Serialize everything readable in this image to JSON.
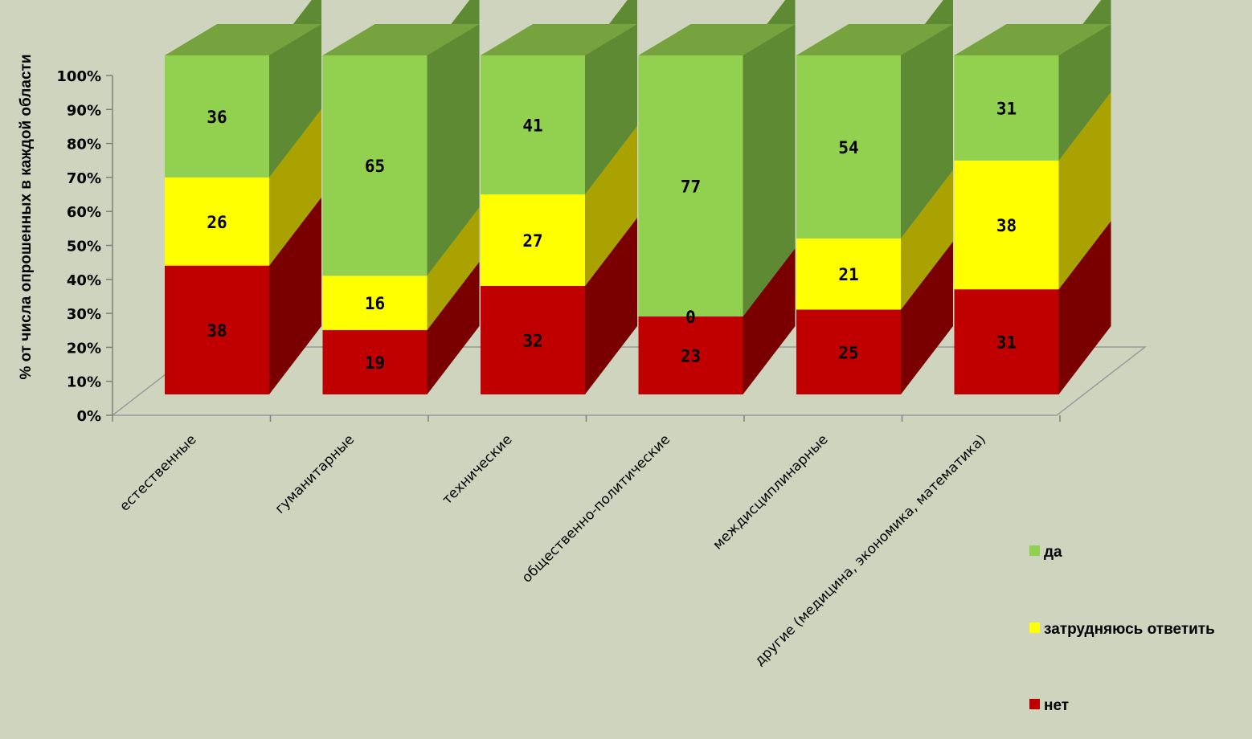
{
  "chart_data": {
    "type": "bar",
    "stacked": "percent",
    "three_d": true,
    "ylabel": "% от числа опрошенных в каждой области",
    "y_tick_labels": [
      "0%",
      "10%",
      "20%",
      "30%",
      "40%",
      "50%",
      "60%",
      "70%",
      "80%",
      "90%",
      "100%"
    ],
    "ylim": [
      0,
      100
    ],
    "categories": [
      "естественные",
      "гуманитарные",
      "технические",
      "общественно-политические",
      "междисциплинарные",
      "другие (медицина, экономика, математика)"
    ],
    "series": [
      {
        "name": "нет",
        "color": "#c00000",
        "side_color": "#7a0000",
        "top_color": "#8a0000",
        "values": [
          38,
          19,
          32,
          23,
          25,
          31
        ]
      },
      {
        "name": "затрудняюсь ответить",
        "color": "#ffff00",
        "side_color": "#a9a200",
        "top_color": "#c8c400",
        "values": [
          26,
          16,
          27,
          0,
          21,
          38
        ]
      },
      {
        "name": "да",
        "color": "#92d050",
        "side_color": "#5e8a33",
        "top_color": "#76a33e",
        "values": [
          36,
          65,
          41,
          77,
          54,
          31
        ]
      }
    ],
    "legend": {
      "position": "right",
      "order": [
        "да",
        "затрудняюсь ответить",
        "нет"
      ]
    },
    "grid": false
  }
}
